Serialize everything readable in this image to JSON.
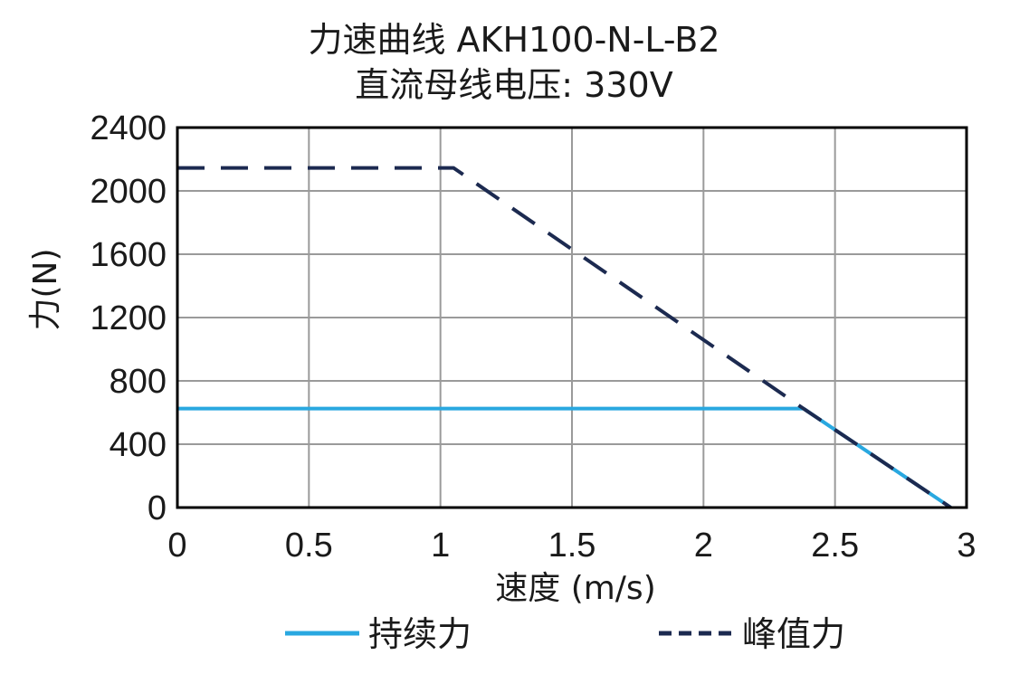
{
  "chart_data": {
    "type": "line",
    "title": "力速曲线 AKH100-N-L-B2",
    "subtitle": "直流母线电压: 330V",
    "xlabel": "速度 (m/s)",
    "ylabel": "力(N)",
    "xlim": [
      0,
      3
    ],
    "ylim": [
      0,
      2400
    ],
    "xticks": [
      "0",
      "0.5",
      "1",
      "1.5",
      "2",
      "2.5",
      "3"
    ],
    "yticks": [
      "0",
      "400",
      "800",
      "1200",
      "1600",
      "2000",
      "2400"
    ],
    "grid": true,
    "legend_position": "bottom",
    "series": [
      {
        "name": "持续力",
        "style": "solid",
        "color": "#29a8e0",
        "x": [
          0,
          2.38,
          2.94
        ],
        "y": [
          625,
          625,
          0
        ]
      },
      {
        "name": "峰值力",
        "style": "dashed",
        "color": "#1c2a50",
        "x": [
          0,
          1.05,
          2.38,
          2.94
        ],
        "y": [
          2145,
          2145,
          625,
          0
        ]
      }
    ]
  }
}
